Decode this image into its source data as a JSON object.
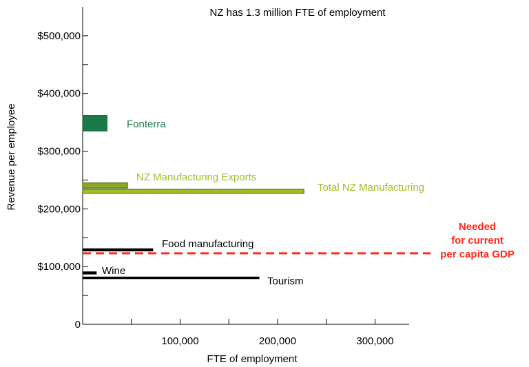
{
  "chart_data": {
    "type": "bar",
    "orientation": "horizontal",
    "title": "NZ has 1.3 million FTE of employment",
    "xlabel": "FTE of employment",
    "ylabel": "Revenue per employee",
    "xlim": [
      0,
      335000
    ],
    "ylim": [
      0,
      550000
    ],
    "x_ticks": [
      100000,
      200000,
      300000
    ],
    "x_tick_labels": [
      "100,000",
      "200,000",
      "300,000"
    ],
    "x_minor_ticks": [
      50000,
      150000,
      250000
    ],
    "y_ticks": [
      0,
      100000,
      200000,
      300000,
      400000,
      500000
    ],
    "y_tick_labels": [
      "0",
      "$100,000",
      "$200,000",
      "$300,000",
      "$400,000",
      "$500,000"
    ],
    "y_minor_ticks": [
      50000,
      150000,
      250000,
      350000,
      450000
    ],
    "grid": false,
    "legend": "none",
    "bars": [
      {
        "label": "Fonterra",
        "fte": 25000,
        "revenue_low": 335000,
        "revenue_high": 362000,
        "color": "#1b7a4a",
        "stroke": "#0f5a33",
        "label_color": "#1b7a4a"
      },
      {
        "label": "NZ Manufacturing Exports",
        "fte": 46000,
        "revenue_low": 236000,
        "revenue_high": 245000,
        "color": "#8aaa1e",
        "stroke": "#3f5a0a",
        "label_color": "#9fbf24"
      },
      {
        "label": "Total NZ Manufacturing",
        "fte": 227000,
        "revenue_low": 227000,
        "revenue_high": 234000,
        "color": "#9fbf24",
        "stroke": "#3f5a0a",
        "label_color": "#9fbf24"
      },
      {
        "label": "Food manufacturing",
        "fte": 72000,
        "revenue_low": 127000,
        "revenue_high": 131000,
        "color": "#000000",
        "stroke": "#000000",
        "label_color": "#000000"
      },
      {
        "label": "Wine",
        "fte": 14000,
        "revenue_low": 87000,
        "revenue_high": 91000,
        "color": "#000000",
        "stroke": "#000000",
        "label_color": "#000000"
      },
      {
        "label": "Tourism",
        "fte": 181000,
        "revenue_low": 79000,
        "revenue_high": 82000,
        "color": "#000000",
        "stroke": "#000000",
        "label_color": "#000000"
      }
    ],
    "reference_line": {
      "value": 123000,
      "style": "dashed",
      "color": "#ff2a1a",
      "label_lines": [
        "Needed",
        "for current",
        "per capita GDP"
      ]
    }
  }
}
